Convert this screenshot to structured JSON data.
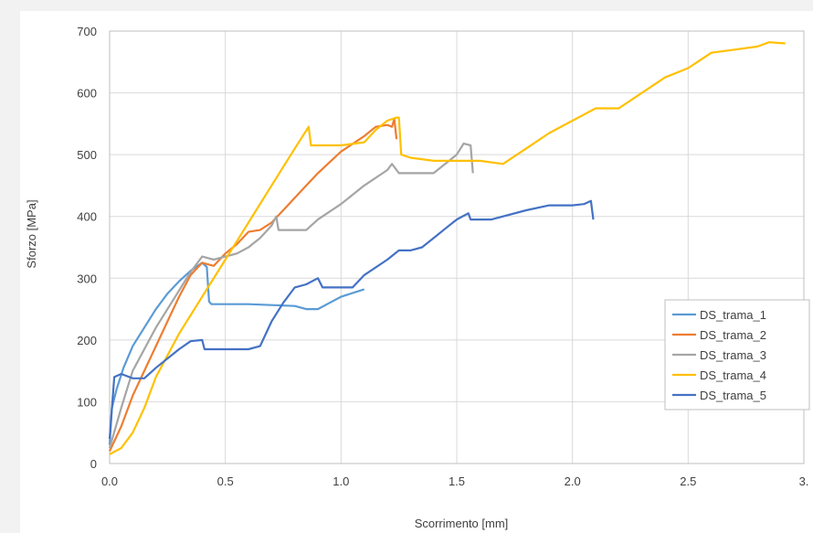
{
  "chart_data": {
    "type": "line",
    "title": "",
    "xlabel": "Scorrimento [mm]",
    "ylabel": "Sforzo [MPa]",
    "xlim": [
      0,
      3.0
    ],
    "ylim": [
      0,
      700
    ],
    "x_ticks": [
      0,
      0.5,
      1,
      1.5,
      2,
      2.5,
      3
    ],
    "x_tick_labels": [
      "0.0",
      "0.5",
      "1.0",
      "1.5",
      "2.0",
      "2.5",
      "3."
    ],
    "y_ticks": [
      0,
      100,
      200,
      300,
      400,
      500,
      600,
      700
    ],
    "y_tick_labels": [
      "0",
      "100",
      "200",
      "300",
      "400",
      "500",
      "600",
      "700"
    ],
    "grid": true,
    "legend_position": "bottom-right",
    "series": [
      {
        "name": "DS_trama_1",
        "color": "#5b9bd5",
        "points": [
          [
            0,
            30
          ],
          [
            0.01,
            90
          ],
          [
            0.03,
            120
          ],
          [
            0.06,
            155
          ],
          [
            0.1,
            190
          ],
          [
            0.15,
            220
          ],
          [
            0.2,
            250
          ],
          [
            0.25,
            275
          ],
          [
            0.3,
            295
          ],
          [
            0.35,
            312
          ],
          [
            0.4,
            325
          ],
          [
            0.42,
            318
          ],
          [
            0.43,
            262
          ],
          [
            0.44,
            258
          ],
          [
            0.6,
            258
          ],
          [
            0.8,
            255
          ],
          [
            0.85,
            250
          ],
          [
            0.9,
            250
          ],
          [
            0.95,
            260
          ],
          [
            1.0,
            270
          ],
          [
            1.1,
            282
          ]
        ]
      },
      {
        "name": "DS_trama_2",
        "color": "#ed7d31",
        "points": [
          [
            0,
            20
          ],
          [
            0.05,
            60
          ],
          [
            0.1,
            110
          ],
          [
            0.15,
            150
          ],
          [
            0.2,
            190
          ],
          [
            0.25,
            230
          ],
          [
            0.3,
            270
          ],
          [
            0.35,
            305
          ],
          [
            0.4,
            325
          ],
          [
            0.45,
            320
          ],
          [
            0.5,
            340
          ],
          [
            0.55,
            355
          ],
          [
            0.6,
            375
          ],
          [
            0.65,
            378
          ],
          [
            0.7,
            390
          ],
          [
            0.75,
            410
          ],
          [
            0.8,
            430
          ],
          [
            0.85,
            450
          ],
          [
            0.9,
            470
          ],
          [
            1.0,
            505
          ],
          [
            1.1,
            530
          ],
          [
            1.15,
            545
          ],
          [
            1.2,
            548
          ],
          [
            1.22,
            545
          ],
          [
            1.23,
            558
          ],
          [
            1.24,
            525
          ]
        ]
      },
      {
        "name": "DS_trama_3",
        "color": "#a5a5a5",
        "points": [
          [
            0,
            25
          ],
          [
            0.05,
            90
          ],
          [
            0.1,
            150
          ],
          [
            0.2,
            220
          ],
          [
            0.3,
            280
          ],
          [
            0.35,
            310
          ],
          [
            0.4,
            335
          ],
          [
            0.45,
            330
          ],
          [
            0.5,
            335
          ],
          [
            0.55,
            340
          ],
          [
            0.6,
            350
          ],
          [
            0.65,
            365
          ],
          [
            0.7,
            385
          ],
          [
            0.72,
            400
          ],
          [
            0.73,
            378
          ],
          [
            0.8,
            378
          ],
          [
            0.85,
            378
          ],
          [
            0.9,
            395
          ],
          [
            1.0,
            420
          ],
          [
            1.1,
            450
          ],
          [
            1.2,
            475
          ],
          [
            1.22,
            485
          ],
          [
            1.25,
            470
          ],
          [
            1.4,
            470
          ],
          [
            1.5,
            500
          ],
          [
            1.53,
            518
          ],
          [
            1.56,
            515
          ],
          [
            1.57,
            470
          ]
        ]
      },
      {
        "name": "DS_trama_4",
        "color": "#ffc000",
        "points": [
          [
            0,
            15
          ],
          [
            0.05,
            25
          ],
          [
            0.1,
            50
          ],
          [
            0.15,
            90
          ],
          [
            0.2,
            140
          ],
          [
            0.3,
            210
          ],
          [
            0.4,
            270
          ],
          [
            0.5,
            330
          ],
          [
            0.6,
            390
          ],
          [
            0.7,
            450
          ],
          [
            0.8,
            510
          ],
          [
            0.86,
            545
          ],
          [
            0.87,
            515
          ],
          [
            1.0,
            515
          ],
          [
            1.1,
            520
          ],
          [
            1.15,
            540
          ],
          [
            1.2,
            555
          ],
          [
            1.24,
            560
          ],
          [
            1.25,
            560
          ],
          [
            1.26,
            500
          ],
          [
            1.3,
            495
          ],
          [
            1.4,
            490
          ],
          [
            1.5,
            490
          ],
          [
            1.6,
            490
          ],
          [
            1.7,
            485
          ],
          [
            1.8,
            510
          ],
          [
            1.9,
            535
          ],
          [
            2.0,
            555
          ],
          [
            2.1,
            575
          ],
          [
            2.2,
            575
          ],
          [
            2.3,
            600
          ],
          [
            2.4,
            625
          ],
          [
            2.5,
            640
          ],
          [
            2.6,
            665
          ],
          [
            2.7,
            670
          ],
          [
            2.8,
            675
          ],
          [
            2.85,
            682
          ],
          [
            2.92,
            680
          ]
        ]
      },
      {
        "name": "DS_trama_5",
        "color": "#4472c4",
        "points": [
          [
            0,
            40
          ],
          [
            0.02,
            140
          ],
          [
            0.05,
            145
          ],
          [
            0.1,
            138
          ],
          [
            0.15,
            138
          ],
          [
            0.2,
            155
          ],
          [
            0.3,
            185
          ],
          [
            0.35,
            198
          ],
          [
            0.4,
            200
          ],
          [
            0.41,
            185
          ],
          [
            0.5,
            185
          ],
          [
            0.6,
            185
          ],
          [
            0.65,
            190
          ],
          [
            0.7,
            230
          ],
          [
            0.75,
            260
          ],
          [
            0.8,
            285
          ],
          [
            0.85,
            290
          ],
          [
            0.9,
            300
          ],
          [
            0.92,
            285
          ],
          [
            1.0,
            285
          ],
          [
            1.05,
            285
          ],
          [
            1.1,
            305
          ],
          [
            1.2,
            330
          ],
          [
            1.25,
            345
          ],
          [
            1.3,
            345
          ],
          [
            1.35,
            350
          ],
          [
            1.4,
            365
          ],
          [
            1.45,
            380
          ],
          [
            1.5,
            395
          ],
          [
            1.55,
            405
          ],
          [
            1.56,
            395
          ],
          [
            1.65,
            395
          ],
          [
            1.7,
            400
          ],
          [
            1.8,
            410
          ],
          [
            1.9,
            418
          ],
          [
            2.0,
            418
          ],
          [
            2.05,
            420
          ],
          [
            2.08,
            425
          ],
          [
            2.09,
            395
          ]
        ]
      }
    ]
  }
}
